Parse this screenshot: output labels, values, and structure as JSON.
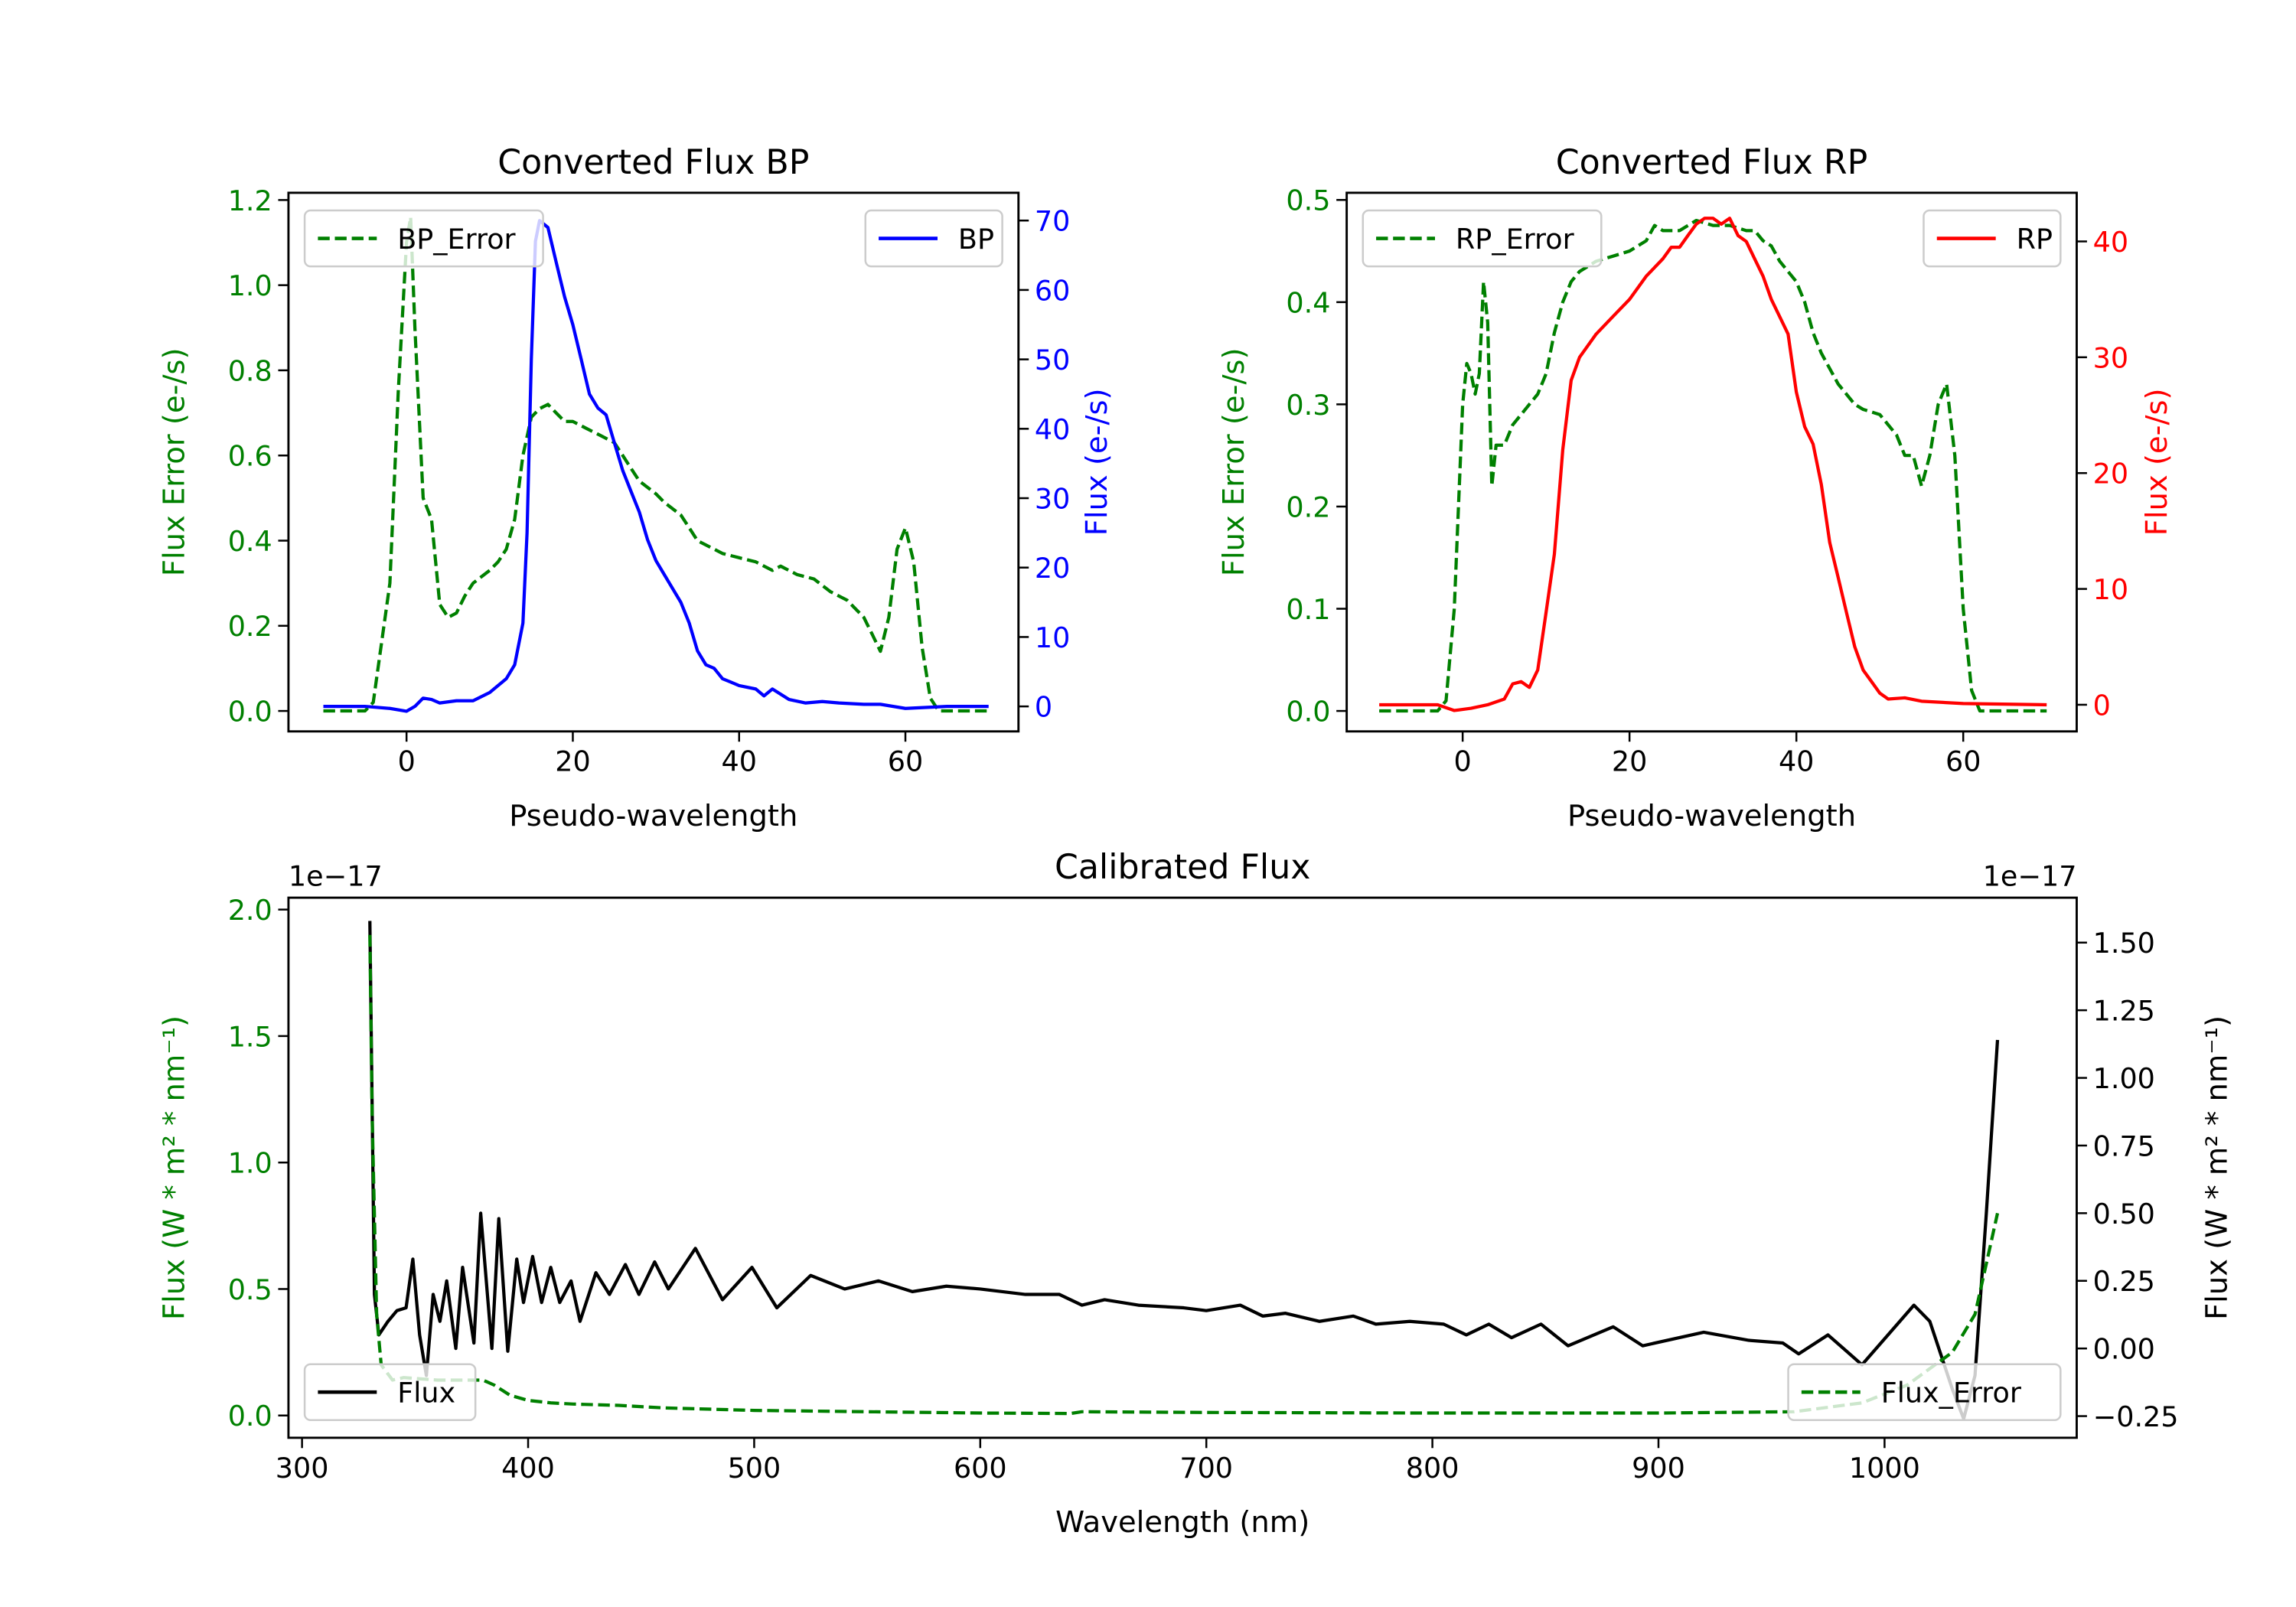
{
  "chart_data": [
    {
      "id": "bp",
      "type": "line",
      "title": "Converted Flux BP",
      "xlabel": "Pseudo-wavelength",
      "ylabel_left": "Flux Error (e-/s)",
      "ylabel_right": "Flux (e-/s)",
      "left_color": "#008000",
      "right_color": "#0000ff",
      "xlim": [
        -14.2,
        73.6
      ],
      "ylim_left": [
        -0.048,
        1.217
      ],
      "ylim_right": [
        -3.6,
        74
      ],
      "xticks": [
        {
          "v": 0,
          "label": "0"
        },
        {
          "v": 20,
          "label": "20"
        },
        {
          "v": 40,
          "label": "40"
        },
        {
          "v": 60,
          "label": "60"
        }
      ],
      "yticks_left": [
        {
          "v": 0,
          "label": "0.0"
        },
        {
          "v": 0.2,
          "label": "0.2"
        },
        {
          "v": 0.4,
          "label": "0.4"
        },
        {
          "v": 0.6,
          "label": "0.6"
        },
        {
          "v": 0.8,
          "label": "0.8"
        },
        {
          "v": 1.0,
          "label": "1.0"
        },
        {
          "v": 1.2,
          "label": "1.2"
        }
      ],
      "yticks_right": [
        {
          "v": 0,
          "label": "0"
        },
        {
          "v": 10,
          "label": "10"
        },
        {
          "v": 20,
          "label": "20"
        },
        {
          "v": 30,
          "label": "30"
        },
        {
          "v": 40,
          "label": "40"
        },
        {
          "v": 50,
          "label": "50"
        },
        {
          "v": 60,
          "label": "60"
        },
        {
          "v": 70,
          "label": "70"
        }
      ],
      "series": [
        {
          "name": "BP_Error",
          "axis": "left",
          "color": "#008000",
          "style": "dashed",
          "legend": "upper left",
          "x": [
            -10,
            -5,
            -4,
            -2,
            -1,
            0,
            0.5,
            1,
            2,
            3,
            4,
            5,
            6,
            7,
            8,
            10,
            11,
            12,
            13,
            14,
            15,
            16,
            17,
            18,
            19,
            20,
            21,
            22,
            23,
            24,
            25,
            26,
            27,
            28,
            30,
            31,
            33,
            34,
            35,
            36,
            38,
            40,
            42,
            44,
            45,
            47,
            49,
            51,
            53,
            55,
            56,
            57,
            58,
            59,
            60,
            61,
            62,
            63,
            64,
            70
          ],
          "y": [
            0,
            0,
            0.02,
            0.3,
            0.75,
            1.1,
            1.16,
            0.9,
            0.5,
            0.45,
            0.25,
            0.22,
            0.23,
            0.27,
            0.3,
            0.33,
            0.35,
            0.38,
            0.45,
            0.6,
            0.69,
            0.71,
            0.72,
            0.7,
            0.68,
            0.68,
            0.67,
            0.66,
            0.65,
            0.64,
            0.63,
            0.6,
            0.57,
            0.54,
            0.51,
            0.49,
            0.46,
            0.43,
            0.4,
            0.39,
            0.37,
            0.36,
            0.35,
            0.33,
            0.34,
            0.32,
            0.31,
            0.28,
            0.26,
            0.22,
            0.18,
            0.14,
            0.22,
            0.38,
            0.43,
            0.35,
            0.15,
            0.03,
            0,
            0
          ]
        },
        {
          "name": "BP",
          "axis": "right",
          "color": "#0000ff",
          "style": "solid",
          "legend": "upper right",
          "x": [
            -10,
            -5,
            -2,
            0,
            1,
            2,
            3,
            4,
            6,
            8,
            10,
            12,
            13,
            14,
            14.5,
            15,
            15.5,
            16,
            17,
            18,
            19,
            20,
            21,
            22,
            23,
            24,
            25,
            26,
            27,
            28,
            29,
            30,
            31,
            33,
            34,
            35,
            36,
            37,
            38,
            39,
            40,
            42,
            43,
            44,
            46,
            48,
            50,
            52,
            55,
            57,
            60,
            65,
            70
          ],
          "y": [
            0,
            0,
            -0.3,
            -0.7,
            0,
            1.2,
            1,
            0.5,
            0.8,
            0.8,
            2,
            4,
            6,
            12,
            25,
            50,
            67,
            70,
            69,
            64,
            59,
            55,
            50,
            45,
            43,
            42,
            38,
            34,
            31,
            28,
            24,
            21,
            19,
            15,
            12,
            8,
            6,
            5.5,
            4,
            3.5,
            3,
            2.5,
            1.5,
            2.5,
            1,
            0.5,
            0.7,
            0.5,
            0.3,
            0.3,
            -0.3,
            0,
            0
          ]
        }
      ]
    },
    {
      "id": "rp",
      "type": "line",
      "title": "Converted Flux RP",
      "xlabel": "Pseudo-wavelength",
      "ylabel_left": "Flux Error (e-/s)",
      "ylabel_right": "Flux (e-/s)",
      "left_color": "#008000",
      "right_color": "#ff0000",
      "xlim": [
        -13.9,
        73.6
      ],
      "ylim_left": [
        -0.02,
        0.507
      ],
      "ylim_right": [
        -2.3,
        44.2
      ],
      "xticks": [
        {
          "v": 0,
          "label": "0"
        },
        {
          "v": 20,
          "label": "20"
        },
        {
          "v": 40,
          "label": "40"
        },
        {
          "v": 60,
          "label": "60"
        }
      ],
      "yticks_left": [
        {
          "v": 0,
          "label": "0.0"
        },
        {
          "v": 0.1,
          "label": "0.1"
        },
        {
          "v": 0.2,
          "label": "0.2"
        },
        {
          "v": 0.3,
          "label": "0.3"
        },
        {
          "v": 0.4,
          "label": "0.4"
        },
        {
          "v": 0.5,
          "label": "0.5"
        }
      ],
      "yticks_right": [
        {
          "v": 0,
          "label": "0"
        },
        {
          "v": 10,
          "label": "10"
        },
        {
          "v": 20,
          "label": "20"
        },
        {
          "v": 30,
          "label": "30"
        },
        {
          "v": 40,
          "label": "40"
        }
      ],
      "series": [
        {
          "name": "RP_Error",
          "axis": "left",
          "color": "#008000",
          "style": "dashed",
          "legend": "upper left",
          "x": [
            -10,
            -3,
            -2,
            -1,
            0,
            0.5,
            1,
            1.5,
            2,
            2.5,
            3,
            3.5,
            4,
            5,
            6,
            7,
            8,
            9,
            10,
            11,
            12,
            13,
            14,
            16,
            18,
            20,
            22,
            23,
            24,
            26,
            28,
            30,
            32,
            34,
            35,
            36,
            37,
            38,
            40,
            41,
            42,
            43,
            45,
            47,
            48,
            50,
            52,
            53,
            54,
            55,
            56,
            57,
            58,
            59,
            60,
            61,
            62,
            70
          ],
          "y": [
            0,
            0,
            0.01,
            0.1,
            0.3,
            0.34,
            0.33,
            0.31,
            0.33,
            0.42,
            0.38,
            0.22,
            0.26,
            0.26,
            0.28,
            0.29,
            0.3,
            0.31,
            0.33,
            0.37,
            0.4,
            0.42,
            0.43,
            0.44,
            0.445,
            0.45,
            0.46,
            0.475,
            0.47,
            0.47,
            0.48,
            0.475,
            0.475,
            0.47,
            0.47,
            0.46,
            0.455,
            0.44,
            0.42,
            0.4,
            0.37,
            0.35,
            0.32,
            0.3,
            0.295,
            0.29,
            0.27,
            0.25,
            0.25,
            0.22,
            0.25,
            0.3,
            0.32,
            0.25,
            0.1,
            0.02,
            0,
            0
          ]
        },
        {
          "name": "RP",
          "axis": "right",
          "color": "#ff0000",
          "style": "solid",
          "legend": "upper right",
          "x": [
            -10,
            -3,
            -1,
            1,
            3,
            5,
            6,
            7,
            8,
            9,
            10,
            11,
            12,
            13,
            14,
            16,
            18,
            20,
            22,
            24,
            25,
            26,
            27,
            28,
            29,
            30,
            31,
            32,
            33,
            34,
            35,
            36,
            37,
            38,
            39,
            40,
            41,
            42,
            43,
            44,
            45,
            46,
            47,
            48,
            49,
            50,
            51,
            53,
            55,
            60,
            70
          ],
          "y": [
            0,
            0,
            -0.5,
            -0.3,
            0,
            0.5,
            1.8,
            2,
            1.5,
            3,
            8,
            13,
            22,
            28,
            30,
            32,
            33.5,
            35,
            37,
            38.5,
            39.5,
            39.5,
            40.5,
            41.5,
            42,
            42,
            41.5,
            42,
            40.5,
            40,
            38.5,
            37,
            35,
            33.5,
            32,
            27,
            24,
            22.5,
            19,
            14,
            11,
            8,
            5,
            3,
            2,
            1,
            0.5,
            0.6,
            0.3,
            0.1,
            0
          ]
        }
      ]
    },
    {
      "id": "cal",
      "type": "line",
      "title": "Calibrated Flux",
      "xlabel": "Wavelength (nm)",
      "ylabel_left": "Flux (W * m² * nm⁻¹)",
      "ylabel_right": "Flux (W * m² * nm⁻¹)",
      "left_color": "#008000",
      "right_color": "#000000",
      "offset_left": "1e−17",
      "offset_right": "1e−17",
      "xlim": [
        294,
        1085
      ],
      "ylim_left": [
        -0.088,
        2.047
      ],
      "ylim_right": [
        -0.33,
        1.666
      ],
      "xticks": [
        {
          "v": 300,
          "label": "300"
        },
        {
          "v": 400,
          "label": "400"
        },
        {
          "v": 500,
          "label": "500"
        },
        {
          "v": 600,
          "label": "600"
        },
        {
          "v": 700,
          "label": "700"
        },
        {
          "v": 800,
          "label": "800"
        },
        {
          "v": 900,
          "label": "900"
        },
        {
          "v": 1000,
          "label": "1000"
        }
      ],
      "yticks_left": [
        {
          "v": 0,
          "label": "0.0"
        },
        {
          "v": 0.5,
          "label": "0.5"
        },
        {
          "v": 1.0,
          "label": "1.0"
        },
        {
          "v": 1.5,
          "label": "1.5"
        },
        {
          "v": 2.0,
          "label": "2.0"
        }
      ],
      "yticks_right": [
        {
          "v": -0.25,
          "label": "−0.25"
        },
        {
          "v": 0,
          "label": "0.00"
        },
        {
          "v": 0.25,
          "label": "0.25"
        },
        {
          "v": 0.5,
          "label": "0.50"
        },
        {
          "v": 0.75,
          "label": "0.75"
        },
        {
          "v": 1.0,
          "label": "1.00"
        },
        {
          "v": 1.25,
          "label": "1.25"
        },
        {
          "v": 1.5,
          "label": "1.50"
        }
      ],
      "series": [
        {
          "name": "Flux",
          "axis": "right",
          "color": "#000000",
          "style": "solid",
          "legend": "lower left",
          "x": [
            330,
            332,
            334,
            338,
            342,
            346,
            349,
            352,
            355,
            358,
            361,
            364,
            368,
            371,
            376,
            379,
            384,
            387,
            391,
            395,
            398,
            402,
            406,
            410,
            414,
            419,
            423,
            430,
            436,
            443,
            449,
            456,
            462,
            474,
            486,
            499,
            510,
            525,
            540,
            555,
            570,
            585,
            600,
            620,
            635,
            645,
            655,
            670,
            690,
            700,
            715,
            725,
            735,
            750,
            765,
            775,
            790,
            805,
            815,
            825,
            835,
            848,
            860,
            880,
            893,
            920,
            940,
            955,
            962,
            975,
            990,
            1013,
            1020,
            1030,
            1035,
            1040,
            1045,
            1050
          ],
          "y": [
            1.58,
            0.2,
            0.05,
            0.1,
            0.14,
            0.15,
            0.33,
            0.05,
            -0.1,
            0.2,
            0.1,
            0.25,
            0.0,
            0.3,
            0.02,
            0.5,
            0.0,
            0.48,
            -0.01,
            0.33,
            0.17,
            0.34,
            0.17,
            0.3,
            0.17,
            0.25,
            0.1,
            0.28,
            0.2,
            0.31,
            0.2,
            0.32,
            0.22,
            0.37,
            0.18,
            0.3,
            0.15,
            0.27,
            0.22,
            0.25,
            0.21,
            0.23,
            0.22,
            0.2,
            0.2,
            0.16,
            0.18,
            0.16,
            0.15,
            0.14,
            0.16,
            0.12,
            0.13,
            0.1,
            0.12,
            0.09,
            0.1,
            0.09,
            0.05,
            0.09,
            0.04,
            0.09,
            0.01,
            0.08,
            0.01,
            0.06,
            0.03,
            0.02,
            -0.02,
            0.05,
            -0.06,
            0.16,
            0.1,
            -0.15,
            -0.26,
            -0.1,
            0.5,
            1.14
          ]
        },
        {
          "name": "Flux_Error",
          "axis": "left",
          "color": "#008000",
          "style": "dashed",
          "legend": "lower right",
          "x": [
            330,
            331,
            333,
            335,
            340,
            345,
            360,
            380,
            385,
            392,
            400,
            410,
            420,
            440,
            460,
            500,
            550,
            600,
            640,
            645,
            700,
            800,
            900,
            960,
            990,
            1010,
            1030,
            1040,
            1045,
            1050
          ],
          "y": [
            1.9,
            1.2,
            0.4,
            0.2,
            0.14,
            0.15,
            0.14,
            0.14,
            0.12,
            0.08,
            0.06,
            0.05,
            0.045,
            0.04,
            0.03,
            0.02,
            0.015,
            0.01,
            0.008,
            0.015,
            0.012,
            0.01,
            0.01,
            0.015,
            0.05,
            0.12,
            0.25,
            0.4,
            0.6,
            0.8
          ]
        }
      ]
    }
  ]
}
